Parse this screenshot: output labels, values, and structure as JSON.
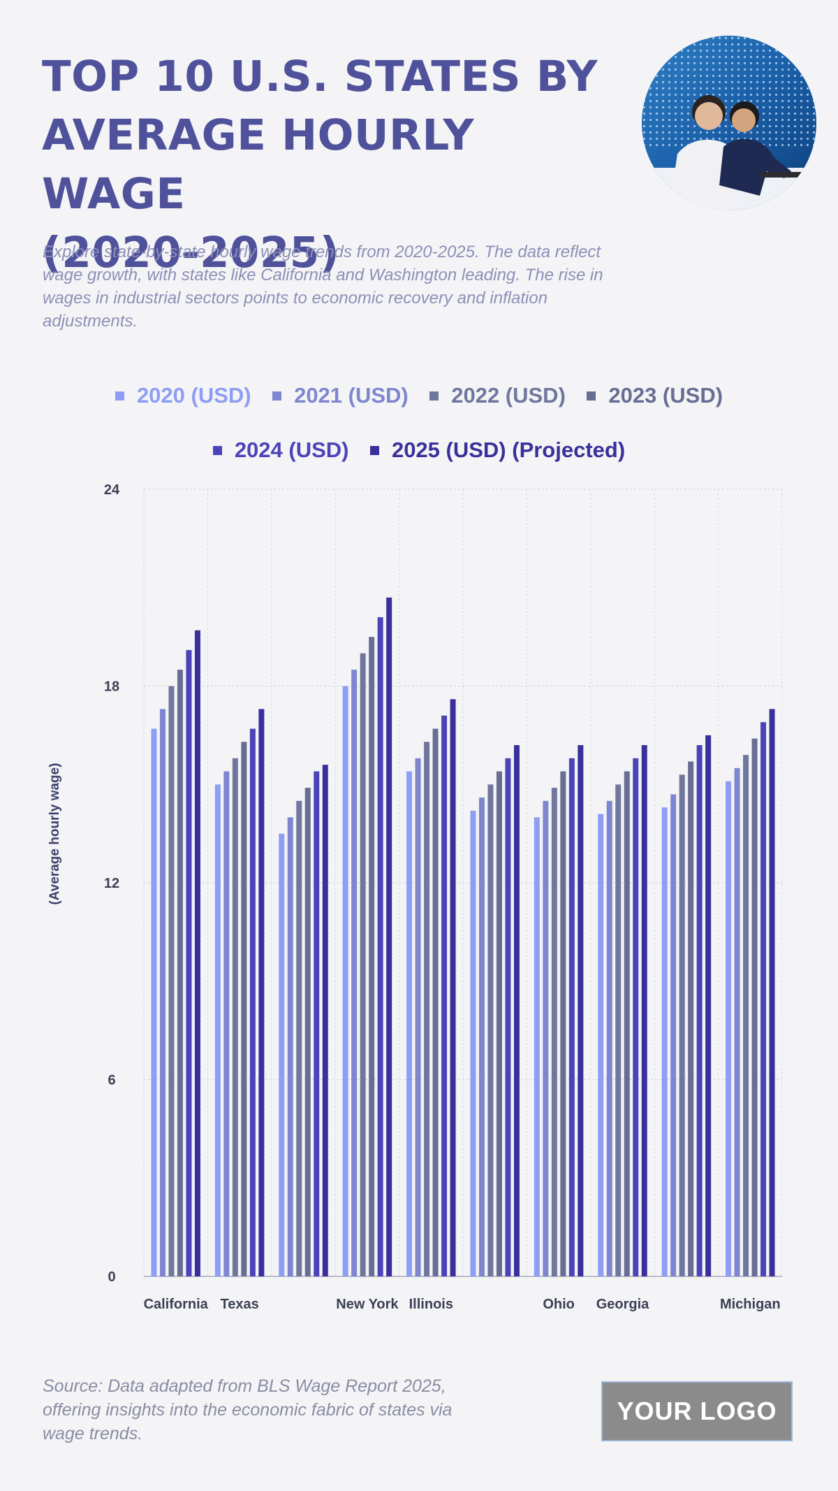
{
  "header": {
    "title_lines": [
      "TOP 10 U.S. STATES BY",
      "AVERAGE HOURLY WAGE",
      "(2020-2025)"
    ],
    "subtitle": "Explore state-by-state hourly wage trends from 2020-2025. The data reflect wage growth, with states like California and Washington leading. The rise in wages in industrial sectors points to economic recovery and inflation adjustments."
  },
  "colors": {
    "title": "#4f529b",
    "series": [
      "#8e9df5",
      "#7e86d0",
      "#70779f",
      "#686d94",
      "#4b43b8",
      "#3a309b"
    ]
  },
  "chart_data": {
    "type": "bar",
    "categories": [
      "California",
      "Texas",
      "",
      "New York",
      "Illinois",
      "",
      "Ohio",
      "Georgia",
      "",
      "Michigan"
    ],
    "series": [
      {
        "name": "2020 (USD)",
        "values": [
          16.7,
          15.0,
          13.5,
          18.0,
          15.4,
          14.2,
          14.0,
          14.1,
          14.3,
          15.1
        ]
      },
      {
        "name": "2021 (USD)",
        "values": [
          17.3,
          15.4,
          14.0,
          18.5,
          15.8,
          14.6,
          14.5,
          14.5,
          14.7,
          15.5
        ]
      },
      {
        "name": "2022 (USD)",
        "values": [
          18.0,
          15.8,
          14.5,
          19.0,
          16.3,
          15.0,
          14.9,
          15.0,
          15.3,
          15.9
        ]
      },
      {
        "name": "2023 (USD)",
        "values": [
          18.5,
          16.3,
          14.9,
          19.5,
          16.7,
          15.4,
          15.4,
          15.4,
          15.7,
          16.4
        ]
      },
      {
        "name": "2024 (USD)",
        "values": [
          19.1,
          16.7,
          15.4,
          20.1,
          17.1,
          15.8,
          15.8,
          15.8,
          16.2,
          16.9
        ]
      },
      {
        "name": "2025 (USD) (Projected)",
        "values": [
          19.7,
          17.3,
          15.6,
          20.7,
          17.6,
          16.2,
          16.2,
          16.2,
          16.5,
          17.3
        ]
      }
    ],
    "ylabel": "(Average hourly wage)",
    "ylim": [
      0,
      24
    ],
    "yticks": [
      0,
      6,
      12,
      18,
      24
    ],
    "grid": true,
    "legend_position": "top"
  },
  "footer": {
    "source": "Source: Data adapted from BLS Wage Report 2025, offering insights into the economic fabric of states via wage trends.",
    "logo": "YOUR LOGO"
  }
}
